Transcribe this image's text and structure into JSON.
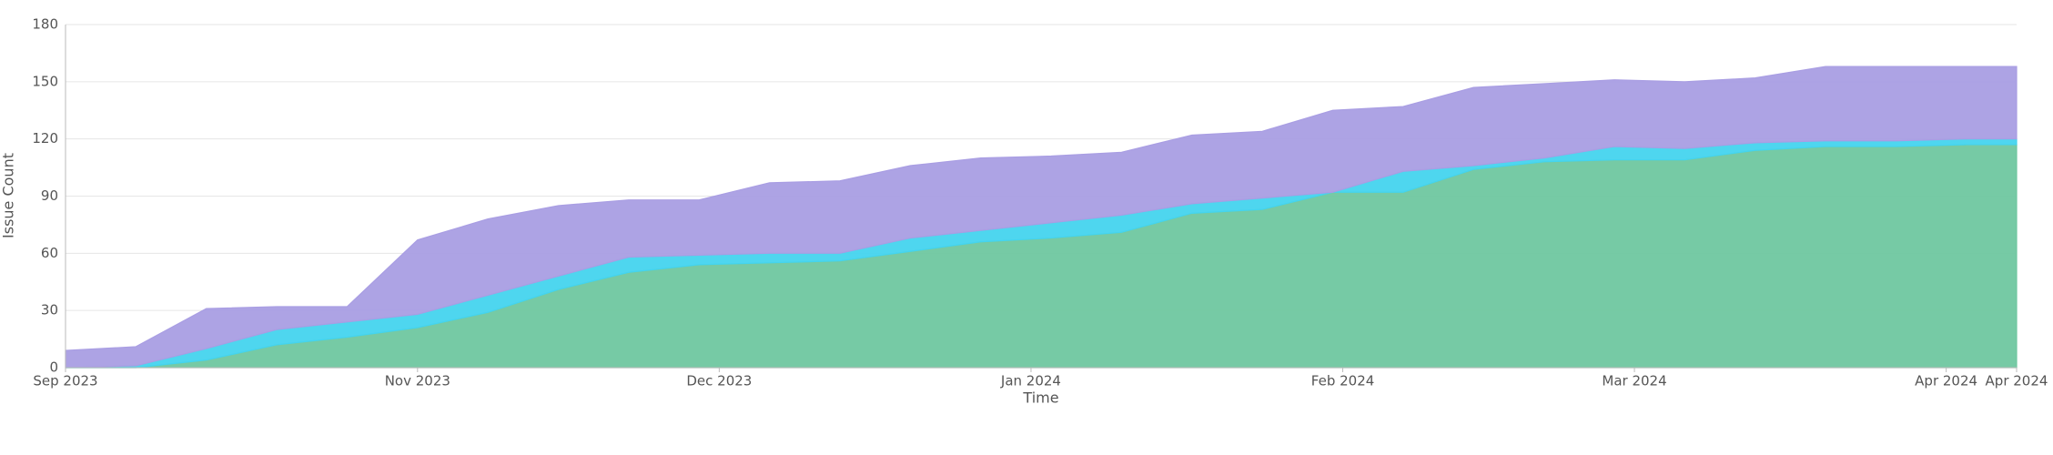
{
  "chart_data": {
    "type": "area",
    "stacked": true,
    "x_label": "Time",
    "y_label": "Issue Count",
    "x": [
      "2023-09-27",
      "2023-10-04",
      "2023-10-11",
      "2023-10-18",
      "2023-10-25",
      "2023-11-01",
      "2023-11-08",
      "2023-11-15",
      "2023-11-22",
      "2023-11-29",
      "2023-12-06",
      "2023-12-13",
      "2023-12-20",
      "2023-12-27",
      "2024-01-03",
      "2024-01-10",
      "2024-01-17",
      "2024-01-24",
      "2024-01-31",
      "2024-02-07",
      "2024-02-14",
      "2024-02-21",
      "2024-02-28",
      "2024-03-06",
      "2024-03-13",
      "2024-03-20",
      "2024-03-27",
      "2024-04-03",
      "2024-04-08"
    ],
    "series": [
      {
        "color": "#6fc7a0",
        "values": [
          0,
          0,
          4,
          12,
          16,
          21,
          29,
          41,
          50,
          54,
          55,
          56,
          61,
          66,
          68,
          71,
          81,
          83,
          92,
          92,
          104,
          108,
          109,
          109,
          114,
          116,
          116,
          117,
          117
        ]
      },
      {
        "color": "#44d4ee",
        "values": [
          0,
          1,
          6,
          8,
          8,
          7,
          9,
          7,
          8,
          5,
          5,
          4,
          7,
          6,
          8,
          9,
          5,
          6,
          0,
          11,
          2,
          2,
          7,
          6,
          4,
          3,
          3,
          3,
          3
        ]
      },
      {
        "color": "#a99ee3",
        "values": [
          9,
          10,
          21,
          12,
          8,
          39,
          40,
          37,
          30,
          29,
          37,
          38,
          38,
          38,
          35,
          33,
          36,
          35,
          43,
          34,
          41,
          39,
          35,
          35,
          34,
          39,
          39,
          38,
          38
        ]
      }
    ],
    "xlim": [
      "2023-09-27",
      "2024-04-08"
    ],
    "xticks": [
      {
        "value": "2023-09-27",
        "label": "Sep 2023"
      },
      {
        "value": "2023-11-01",
        "label": "Nov 2023"
      },
      {
        "value": "2023-12-01",
        "label": "Dec 2023"
      },
      {
        "value": "2024-01-01",
        "label": "Jan 2024"
      },
      {
        "value": "2024-02-01",
        "label": "Feb 2024"
      },
      {
        "value": "2024-03-01",
        "label": "Mar 2024"
      },
      {
        "value": "2024-04-01",
        "label": "Apr 2024"
      },
      {
        "value": "2024-04-08",
        "label": "Apr 2024"
      }
    ],
    "ylim": [
      0,
      180
    ],
    "yticks": [
      0,
      30,
      60,
      90,
      120,
      150,
      180
    ],
    "grid": true
  }
}
